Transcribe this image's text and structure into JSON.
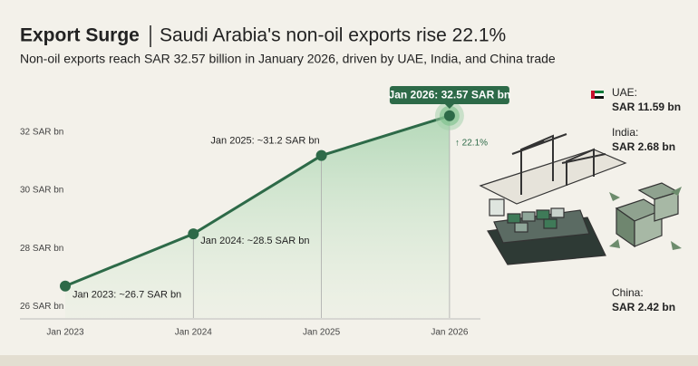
{
  "chart_data": {
    "type": "line",
    "title": "Export Surge",
    "headline": "Saudi Arabia's non-oil exports rise 22.1%",
    "subtitle": "Non-oil exports reach SAR 32.57 billion in January 2026, driven by UAE, India, and China trade",
    "categories": [
      "Jan 2023",
      "Jan 2024",
      "Jan 2025",
      "Jan 2026"
    ],
    "values": [
      26.7,
      28.5,
      31.2,
      32.57
    ],
    "value_labels": [
      "Jan 2023: ~26.7 SAR bn",
      "Jan 2024: ~28.5 SAR bn",
      "Jan 2025: ~31.2 SAR bn",
      "Jan 2026: 32.57 SAR bn"
    ],
    "growth_label": "↑ 22.1%",
    "color": "#2d6a48",
    "ylim": [
      25.6,
      33.5
    ],
    "yticks": [
      {
        "value": 26,
        "label": "26 SAR bn"
      },
      {
        "value": 28,
        "label": "28 SAR bn"
      },
      {
        "value": 30,
        "label": "30 SAR bn"
      },
      {
        "value": 32,
        "label": "32 SAR bn"
      }
    ]
  },
  "partners": [
    {
      "name": "UAE:",
      "value": "SAR 11.59 bn"
    },
    {
      "name": "India:",
      "value": "SAR 2.68 bn"
    },
    {
      "name": "China:",
      "value": "SAR 2.42 bn"
    }
  ]
}
